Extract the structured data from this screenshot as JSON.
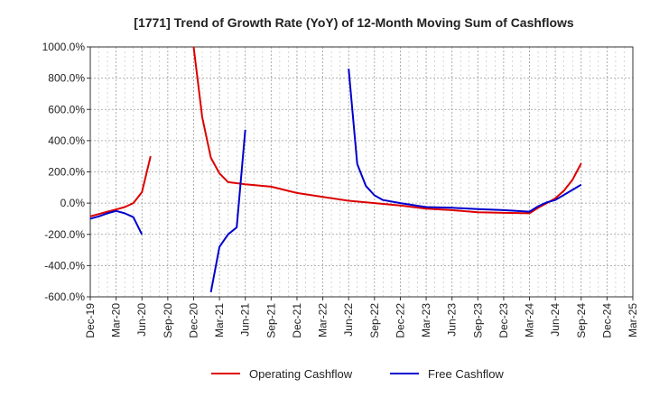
{
  "chart_data": {
    "type": "line",
    "title": "[1771]  Trend of Growth Rate (YoY) of 12-Month Moving Sum of Cashflows",
    "xlabel": "",
    "ylabel": "",
    "ylim": [
      -600,
      1000
    ],
    "y_ticks": [
      "1000.0%",
      "800.0%",
      "600.0%",
      "400.0%",
      "200.0%",
      "0.0%",
      "-200.0%",
      "-400.0%",
      "-600.0%"
    ],
    "y_tick_values": [
      1000,
      800,
      600,
      400,
      200,
      0,
      -200,
      -400,
      -600
    ],
    "x_ticks": [
      "Dec-19",
      "Mar-20",
      "Jun-20",
      "Sep-20",
      "Dec-20",
      "Mar-21",
      "Jun-21",
      "Sep-21",
      "Dec-21",
      "Mar-22",
      "Jun-22",
      "Sep-22",
      "Dec-22",
      "Mar-23",
      "Jun-23",
      "Sep-23",
      "Dec-23",
      "Mar-24",
      "Jun-24",
      "Sep-24",
      "Dec-24",
      "Mar-25"
    ],
    "grid": true,
    "legend": "bottom",
    "series": [
      {
        "name": "Operating Cashflow",
        "color": "#dd0000",
        "segments": [
          [
            [
              "Dec-19",
              -85
            ],
            [
              "Jan-20",
              -70
            ],
            [
              "Feb-20",
              -55
            ],
            [
              "Mar-20",
              -40
            ],
            [
              "Apr-20",
              -25
            ],
            [
              "May-20",
              0
            ],
            [
              "Jun-20",
              70
            ],
            [
              "Jul-20",
              300
            ]
          ],
          [
            [
              "Dec-20",
              1000
            ],
            [
              "Jan-21",
              550
            ],
            [
              "Feb-21",
              290
            ],
            [
              "Mar-21",
              190
            ],
            [
              "Apr-21",
              135
            ],
            [
              "Jun-21",
              120
            ],
            [
              "Sep-21",
              105
            ],
            [
              "Dec-21",
              65
            ],
            [
              "Mar-22",
              40
            ],
            [
              "Jun-22",
              15
            ],
            [
              "Sep-22",
              0
            ],
            [
              "Dec-22",
              -15
            ],
            [
              "Mar-23",
              -35
            ],
            [
              "Jun-23",
              -45
            ],
            [
              "Sep-23",
              -58
            ],
            [
              "Dec-23",
              -62
            ],
            [
              "Mar-24",
              -65
            ],
            [
              "Apr-24",
              -30
            ],
            [
              "May-24",
              0
            ],
            [
              "Jun-24",
              30
            ],
            [
              "Jul-24",
              80
            ],
            [
              "Aug-24",
              150
            ],
            [
              "Sep-24",
              255
            ]
          ]
        ]
      },
      {
        "name": "Free Cashflow",
        "color": "#0000cc",
        "segments": [
          [
            [
              "Dec-19",
              -100
            ],
            [
              "Jan-20",
              -85
            ],
            [
              "Feb-20",
              -65
            ],
            [
              "Mar-20",
              -50
            ],
            [
              "Apr-20",
              -65
            ],
            [
              "May-20",
              -90
            ],
            [
              "Jun-20",
              -200
            ]
          ],
          [
            [
              "Feb-21",
              -570
            ],
            [
              "Mar-21",
              -280
            ],
            [
              "Apr-21",
              -200
            ],
            [
              "May-21",
              -155
            ],
            [
              "Jun-21",
              470
            ]
          ],
          [
            [
              "Jun-22",
              860
            ],
            [
              "Jul-22",
              250
            ],
            [
              "Aug-22",
              110
            ],
            [
              "Sep-22",
              50
            ],
            [
              "Oct-22",
              20
            ],
            [
              "Dec-22",
              0
            ],
            [
              "Mar-23",
              -25
            ],
            [
              "Jun-23",
              -30
            ],
            [
              "Sep-23",
              -38
            ],
            [
              "Dec-23",
              -45
            ],
            [
              "Mar-24",
              -55
            ],
            [
              "Apr-24",
              -20
            ],
            [
              "May-24",
              5
            ],
            [
              "Jun-24",
              20
            ],
            [
              "Sep-24",
              118
            ]
          ]
        ]
      }
    ]
  }
}
